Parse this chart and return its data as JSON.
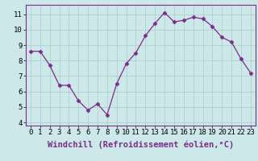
{
  "x": [
    0,
    1,
    2,
    3,
    4,
    5,
    6,
    7,
    8,
    9,
    10,
    11,
    12,
    13,
    14,
    15,
    16,
    17,
    18,
    19,
    20,
    21,
    22,
    23
  ],
  "y": [
    8.6,
    8.6,
    7.7,
    6.4,
    6.4,
    5.4,
    4.8,
    5.2,
    4.5,
    6.5,
    7.8,
    8.5,
    9.6,
    10.4,
    11.1,
    10.5,
    10.6,
    10.8,
    10.7,
    10.2,
    9.5,
    9.2,
    8.1,
    7.2
  ],
  "line_color": "#7b2d8b",
  "marker": "D",
  "marker_size": 2.5,
  "bg_color": "#cce8e8",
  "grid_color": "#aacccc",
  "xlabel": "Windchill (Refroidissement éolien,°C)",
  "xlim": [
    -0.5,
    23.5
  ],
  "ylim": [
    3.8,
    11.6
  ],
  "yticks": [
    4,
    5,
    6,
    7,
    8,
    9,
    10,
    11
  ],
  "xticks": [
    0,
    1,
    2,
    3,
    4,
    5,
    6,
    7,
    8,
    9,
    10,
    11,
    12,
    13,
    14,
    15,
    16,
    17,
    18,
    19,
    20,
    21,
    22,
    23
  ],
  "xlabel_fontsize": 7.5,
  "tick_fontsize": 6.5,
  "spine_color": "#7b2d8b"
}
